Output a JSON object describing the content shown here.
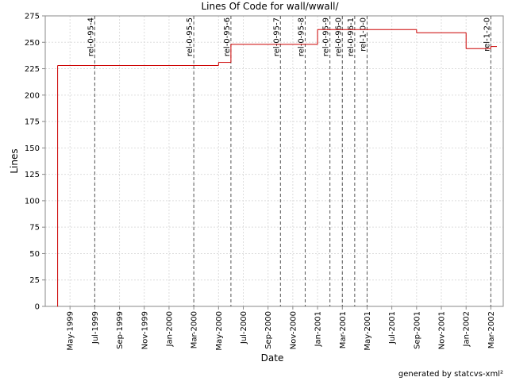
{
  "chart_data": {
    "type": "step-line",
    "title": "Lines Of Code for wall/wwall/",
    "xlabel": "Date",
    "ylabel": "Lines",
    "footer": "generated by statcvs-xml²",
    "x": [
      "1999-04",
      "1999-04",
      "2000-05",
      "2000-06",
      "2001-01",
      "2001-09",
      "2002-01",
      "2002-03"
    ],
    "series": [
      {
        "name": "Lines",
        "color": "#cc0000",
        "values": [
          0,
          228,
          231,
          248,
          262,
          259,
          244,
          246
        ]
      }
    ],
    "xlim": [
      "1999-03",
      "2002-04"
    ],
    "xticks": [
      {
        "value": "1999-05",
        "label": "May-1999"
      },
      {
        "value": "1999-07",
        "label": "Jul-1999"
      },
      {
        "value": "1999-09",
        "label": "Sep-1999"
      },
      {
        "value": "1999-11",
        "label": "Nov-1999"
      },
      {
        "value": "2000-01",
        "label": "Jan-2000"
      },
      {
        "value": "2000-03",
        "label": "Mar-2000"
      },
      {
        "value": "2000-05",
        "label": "May-2000"
      },
      {
        "value": "2000-07",
        "label": "Jul-2000"
      },
      {
        "value": "2000-09",
        "label": "Sep-2000"
      },
      {
        "value": "2000-11",
        "label": "Nov-2000"
      },
      {
        "value": "2001-01",
        "label": "Jan-2001"
      },
      {
        "value": "2001-03",
        "label": "Mar-2001"
      },
      {
        "value": "2001-05",
        "label": "May-2001"
      },
      {
        "value": "2001-07",
        "label": "Jul-2001"
      },
      {
        "value": "2001-09",
        "label": "Sep-2001"
      },
      {
        "value": "2001-11",
        "label": "Nov-2001"
      },
      {
        "value": "2002-01",
        "label": "Jan-2002"
      },
      {
        "value": "2002-03",
        "label": "Mar-2002"
      }
    ],
    "ylim": [
      0,
      275
    ],
    "yticks": [
      0,
      25,
      50,
      75,
      100,
      125,
      150,
      175,
      200,
      225,
      250,
      275
    ],
    "grid": true,
    "markers": [
      {
        "x": "1999-07",
        "label": "rel-0-95-4"
      },
      {
        "x": "2000-03",
        "label": "rel-0-95-5"
      },
      {
        "x": "2000-06",
        "label": "rel-0-95-6"
      },
      {
        "x": "2000-10",
        "label": "rel-0-95-7"
      },
      {
        "x": "2000-12",
        "label": "rel-0-95-8"
      },
      {
        "x": "2001-02",
        "label": "rel-0-95-9"
      },
      {
        "x": "2001-03",
        "label": "rel-0-96-0"
      },
      {
        "x": "2001-04",
        "label": "rel-0-96-1"
      },
      {
        "x": "2001-05",
        "label": "rel-1-0-0"
      },
      {
        "x": "2002-03",
        "label": "rel-1-2-0"
      }
    ]
  }
}
